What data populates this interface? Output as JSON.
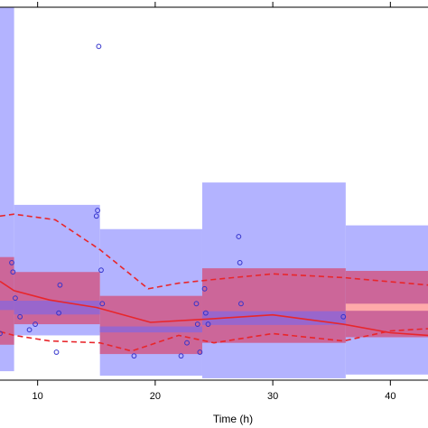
{
  "chart_data": {
    "type": "line",
    "title": "",
    "xlabel": "Time (h)",
    "ylabel": "",
    "xlim": [
      6.8,
      43.2
    ],
    "ylim": [
      0,
      100
    ],
    "x_ticks": [
      10,
      20,
      30,
      40
    ],
    "x_tick_labels": [
      "10",
      "20",
      "30",
      "40"
    ],
    "grid": false,
    "colors": {
      "outer_band": "#b3b3ff",
      "inner_band": "#cc6699",
      "median_band": "#9966cc",
      "median_band_last": "#ffaaaa",
      "line": "#e8262b",
      "points": "#3333cc"
    },
    "bins": [
      {
        "x": [
          6.8,
          8.0
        ],
        "outer": [
          2.4,
          100
        ],
        "inner": [
          9.5,
          33
        ],
        "median": [
          18.8,
          21.3
        ]
      },
      {
        "x": [
          8.0,
          15.3
        ],
        "outer": [
          12,
          47
        ],
        "inner": [
          15,
          29
        ],
        "median": [
          17.6,
          21.3
        ]
      },
      {
        "x": [
          15.3,
          24
        ],
        "outer": [
          1.2,
          40.5
        ],
        "inner": [
          7,
          22.6
        ],
        "median": [
          12.8,
          14.4
        ]
      },
      {
        "x": [
          24,
          36.2
        ],
        "outer": [
          0.5,
          53
        ],
        "inner": [
          10,
          30
        ],
        "median": [
          14.8,
          18.5
        ]
      },
      {
        "x": [
          36.2,
          43.2
        ],
        "outer": [
          1.5,
          41.5
        ],
        "inner": [
          11.5,
          29.3
        ],
        "median": [
          18.6,
          20.5
        ]
      }
    ],
    "series": [
      {
        "style": "solid",
        "x": [
          6.8,
          8,
          11,
          15,
          19.6,
          25,
          30,
          36,
          40,
          43.2
        ],
        "y": [
          26.5,
          24,
          21.5,
          19.5,
          15.5,
          16.5,
          17.5,
          15,
          12.7,
          12
        ]
      },
      {
        "style": "dashed",
        "x": [
          6.8,
          8,
          11.5,
          15.3,
          19.4,
          22,
          25,
          30,
          36,
          43.2
        ],
        "y": [
          44,
          44.5,
          43,
          35,
          24.5,
          26,
          27,
          28.5,
          27.5,
          25.5
        ]
      },
      {
        "style": "dashed",
        "x": [
          6.8,
          8,
          11,
          15.3,
          18,
          22,
          25,
          30,
          36,
          40,
          43.2
        ],
        "y": [
          13,
          12,
          10.5,
          10,
          7.8,
          12,
          10,
          12.5,
          10.5,
          13.2,
          13.8
        ]
      }
    ],
    "points": [
      [
        6.8,
        12.5
      ],
      [
        7.8,
        31.5
      ],
      [
        7.9,
        29
      ],
      [
        8.1,
        22
      ],
      [
        8.5,
        17
      ],
      [
        9.3,
        13.5
      ],
      [
        9.8,
        15
      ],
      [
        11.6,
        7.5
      ],
      [
        11.8,
        18
      ],
      [
        11.9,
        25.5
      ],
      [
        15.0,
        44
      ],
      [
        15.1,
        45.5
      ],
      [
        15.2,
        89.5
      ],
      [
        15.4,
        29.5
      ],
      [
        15.5,
        20.5
      ],
      [
        18.2,
        6.5
      ],
      [
        22.2,
        6.5
      ],
      [
        22.7,
        10
      ],
      [
        23.5,
        20.5
      ],
      [
        23.6,
        15
      ],
      [
        23.8,
        7.5
      ],
      [
        24.2,
        24.5
      ],
      [
        24.3,
        18
      ],
      [
        24.5,
        15
      ],
      [
        27.1,
        38.5
      ],
      [
        27.2,
        31.5
      ],
      [
        27.3,
        20.5
      ],
      [
        36.0,
        17
      ]
    ]
  }
}
